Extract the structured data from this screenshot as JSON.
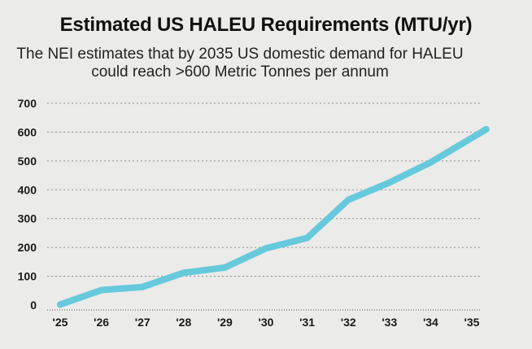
{
  "chart_data": {
    "type": "line",
    "title": "Estimated US HALEU Requirements (MTU/yr)",
    "subtitle": "The NEI estimates that by 2035 US domestic demand for HALEU could reach >600 Metric Tonnes per annum",
    "xlabel": "",
    "ylabel": "",
    "categories": [
      "'25",
      "'26",
      "'27",
      "'28",
      "'29",
      "'30",
      "'31",
      "'32",
      "'33",
      "'34",
      "'35"
    ],
    "series": [
      {
        "name": "HALEU Requirements",
        "x": [
          2025,
          2026,
          2027,
          2028,
          2029,
          2030,
          2031,
          2032,
          2033,
          2034,
          2035
        ],
        "values": [
          2,
          52,
          63,
          112,
          130,
          197,
          233,
          365,
          425,
          495,
          610
        ]
      }
    ],
    "yticks": [
      0,
      100,
      200,
      300,
      400,
      500,
      600,
      700
    ],
    "ylim": [
      0,
      700
    ],
    "xlim": [
      2025,
      2035.35
    ],
    "grid": true,
    "line_color": "#66c9dc",
    "grid_color": "#8d8d8d",
    "axis_color": "#555555"
  }
}
